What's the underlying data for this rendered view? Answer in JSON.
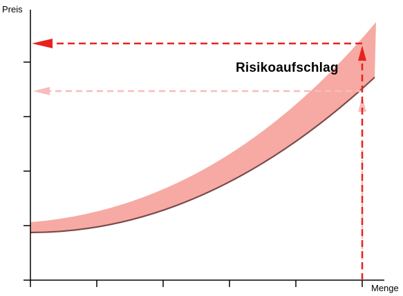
{
  "axes": {
    "y_label": "Preis",
    "x_label": "Menge",
    "y_ticks": 5,
    "x_ticks": 6
  },
  "annotation": "Risikoaufschlag",
  "colors": {
    "band_fill": "#f6aaa3",
    "lower_curve": "#7a4a4a",
    "arrow_strong": "#e8221c",
    "arrow_light": "#f7bcbc",
    "axis": "#000000"
  }
}
